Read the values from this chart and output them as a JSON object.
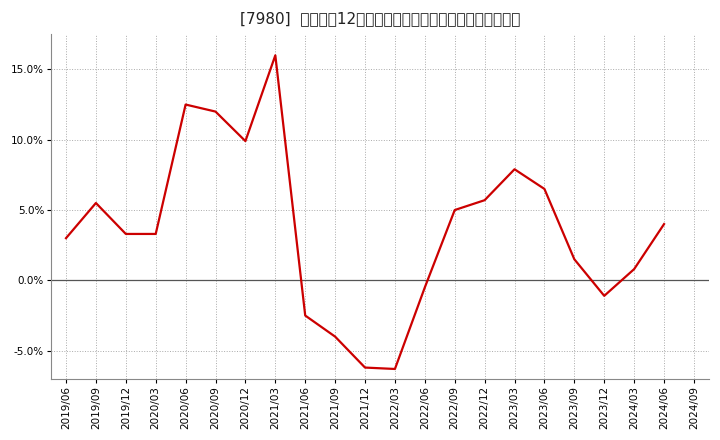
{
  "title": "[7980]  売上高の12か月移動合計の対前年同期増減率の推移",
  "line_color": "#cc0000",
  "background_color": "#ffffff",
  "plot_bg_color": "#ffffff",
  "grid_color": "#aaaaaa",
  "zero_line_color": "#555555",
  "dates": [
    "2019/06",
    "2019/09",
    "2019/12",
    "2020/03",
    "2020/06",
    "2020/09",
    "2020/12",
    "2021/03",
    "2021/06",
    "2021/09",
    "2021/12",
    "2022/03",
    "2022/06",
    "2022/09",
    "2022/12",
    "2023/03",
    "2023/06",
    "2023/09",
    "2023/12",
    "2024/03",
    "2024/06",
    "2024/09"
  ],
  "values": [
    3.0,
    5.5,
    3.3,
    3.3,
    12.5,
    12.0,
    9.9,
    16.0,
    -2.5,
    -4.0,
    -6.2,
    -6.3,
    -0.5,
    5.0,
    5.7,
    7.9,
    6.5,
    1.5,
    -1.1,
    0.8,
    4.0,
    null
  ],
  "yticks": [
    -5.0,
    0.0,
    5.0,
    10.0,
    15.0
  ],
  "ylim": [
    -7.0,
    17.5
  ],
  "title_fontsize": 11,
  "axis_fontsize": 7.5,
  "line_width": 1.6
}
